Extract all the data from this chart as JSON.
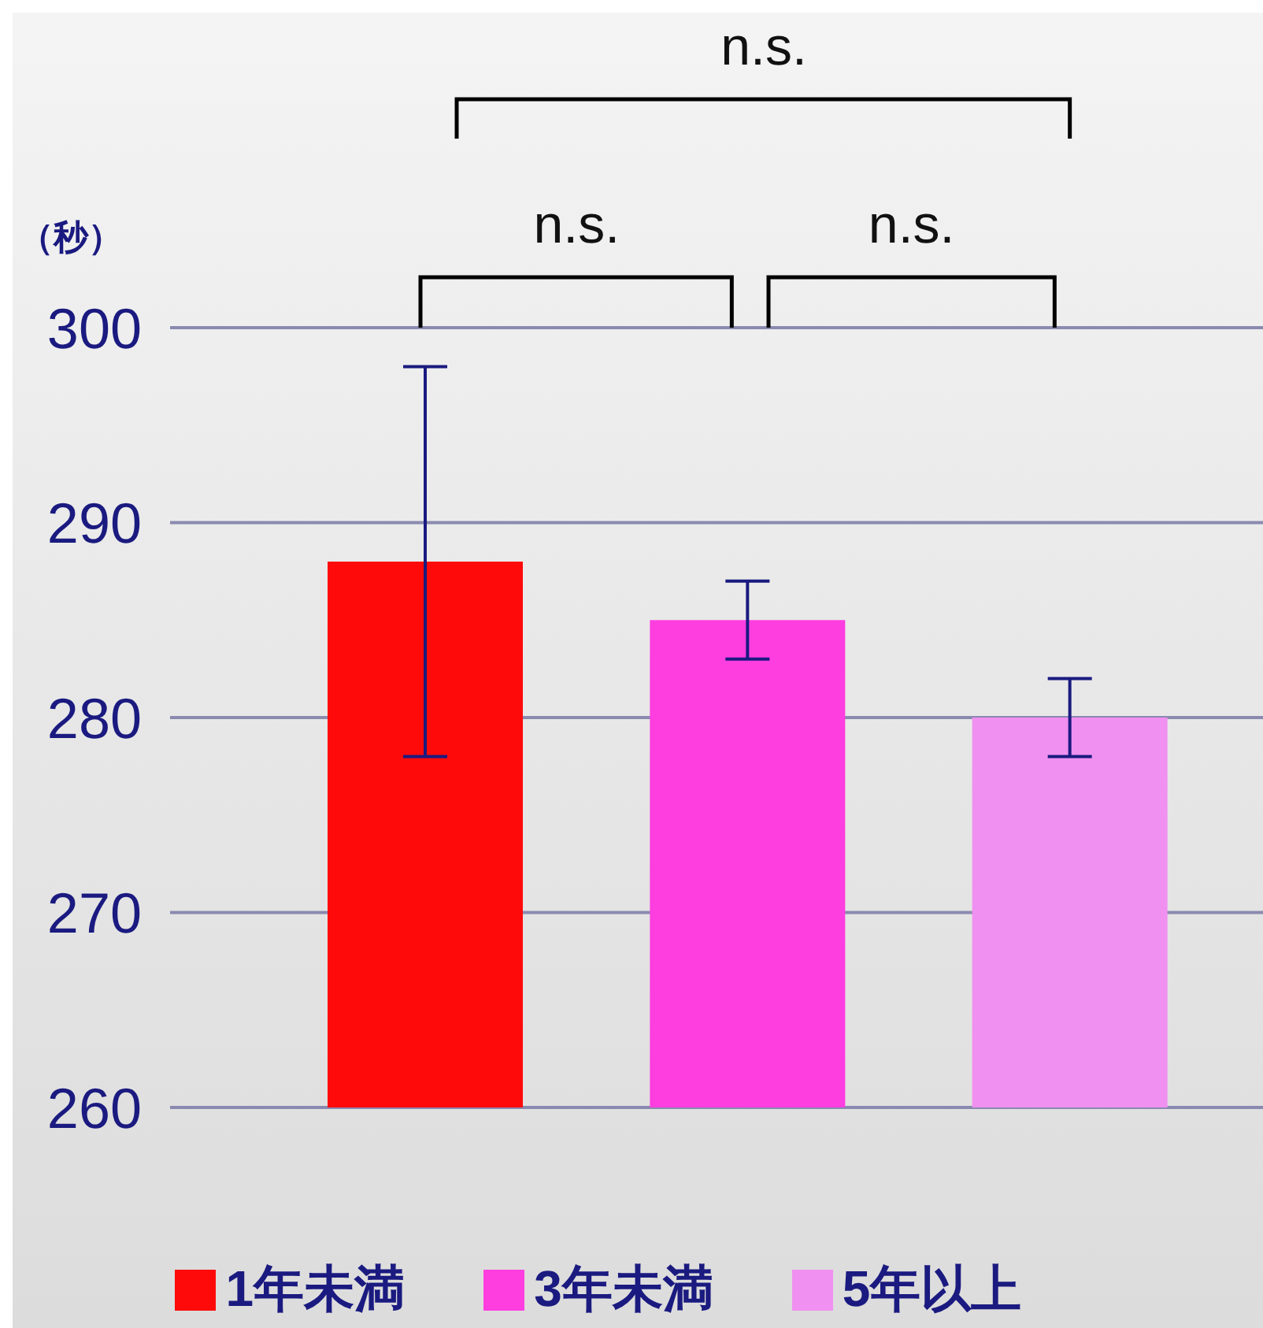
{
  "chart_data": {
    "type": "bar",
    "ylabel": "（秒）",
    "categories": [
      null,
      null,
      null
    ],
    "series": [
      {
        "name": "1年未満",
        "color": "#ff0a0a",
        "values": [
          288,
          null,
          null
        ],
        "errors": [
          10,
          null,
          null
        ]
      },
      {
        "name": "3年未満",
        "color": "#ff3ee0",
        "values": [
          null,
          285,
          null
        ],
        "errors": [
          null,
          2,
          null
        ]
      },
      {
        "name": "5年以上",
        "color": "#f090f0",
        "values": [
          null,
          null,
          280
        ],
        "errors": [
          null,
          null,
          2
        ]
      }
    ],
    "ylim": [
      260,
      300
    ],
    "yticks": [
      260,
      270,
      280,
      290,
      300
    ],
    "grid": "y",
    "legend": "bottom",
    "tick_labels": "y",
    "annotations": [
      "n.s.",
      "n.s.",
      "n.s."
    ]
  }
}
